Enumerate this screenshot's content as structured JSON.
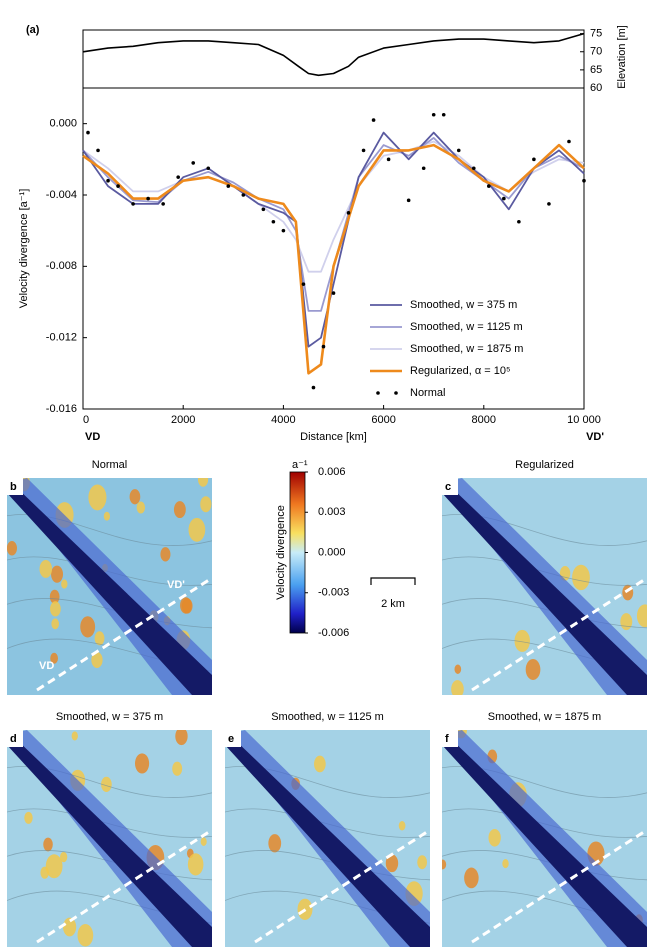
{
  "chart_data": [
    {
      "type": "line",
      "label": "(a)",
      "y_label": "Elevation [m]",
      "x": [
        0,
        500,
        1000,
        1500,
        2000,
        2500,
        3000,
        3500,
        4000,
        4300,
        4500,
        4700,
        5000,
        5300,
        5500,
        6000,
        6500,
        7000,
        7500,
        8000,
        8500,
        9000,
        9500,
        10000
      ],
      "series": [
        {
          "color": "#000000",
          "values": [
            70,
            71,
            71.5,
            72.5,
            73,
            73,
            72.5,
            72,
            69,
            66,
            64,
            63.5,
            64,
            66,
            68.5,
            71,
            72,
            73,
            73.5,
            73.5,
            73,
            72.5,
            73,
            75
          ]
        }
      ],
      "xlim": [
        0,
        10000
      ],
      "ylim": [
        60,
        76
      ],
      "yticks": [
        60,
        65,
        70,
        75
      ]
    },
    {
      "type": "line",
      "x_label": "Distance [km]",
      "y_label": "Velocity divergence [a⁻¹]",
      "annotations": [
        "VD",
        "VD'"
      ],
      "x": [
        0,
        500,
        1000,
        1500,
        2000,
        2500,
        3000,
        3500,
        4000,
        4250,
        4500,
        4750,
        5000,
        5500,
        6000,
        6500,
        7000,
        7500,
        8000,
        8500,
        9000,
        9500,
        10000
      ],
      "series": [
        {
          "name": "Smoothed, w = 375 m",
          "color": "#5a5aa0",
          "values": [
            -0.0015,
            -0.0035,
            -0.0045,
            -0.0045,
            -0.003,
            -0.0025,
            -0.0035,
            -0.0045,
            -0.005,
            -0.0055,
            -0.0125,
            -0.012,
            -0.009,
            -0.003,
            -0.0005,
            -0.002,
            -0.0005,
            -0.002,
            -0.003,
            -0.0048,
            -0.0025,
            -0.0015,
            -0.0028
          ]
        },
        {
          "name": "Smoothed, w = 1125 m",
          "color": "#9a9ad0",
          "values": [
            -0.0015,
            -0.003,
            -0.0043,
            -0.0044,
            -0.0032,
            -0.0027,
            -0.0033,
            -0.0042,
            -0.0048,
            -0.006,
            -0.0105,
            -0.0105,
            -0.008,
            -0.003,
            -0.0012,
            -0.0018,
            -0.0008,
            -0.0022,
            -0.0032,
            -0.0042,
            -0.0025,
            -0.0018,
            -0.0025
          ]
        },
        {
          "name": "Smoothed, w = 1875 m",
          "color": "#d0d0ec",
          "values": [
            -0.0015,
            -0.0025,
            -0.0038,
            -0.0038,
            -0.0032,
            -0.003,
            -0.0035,
            -0.0045,
            -0.0055,
            -0.0065,
            -0.0083,
            -0.0083,
            -0.0065,
            -0.0035,
            -0.0018,
            -0.0015,
            -0.001,
            -0.0018,
            -0.003,
            -0.0038,
            -0.0027,
            -0.002,
            -0.0022
          ]
        },
        {
          "name": "Regularized, α = 10⁵",
          "color": "#ee8a1c",
          "values": [
            -0.0018,
            -0.0028,
            -0.0042,
            -0.0042,
            -0.0032,
            -0.003,
            -0.0035,
            -0.0042,
            -0.0045,
            -0.0055,
            -0.014,
            -0.0135,
            -0.008,
            -0.0035,
            -0.0015,
            -0.0015,
            -0.0012,
            -0.002,
            -0.0032,
            -0.0038,
            -0.0025,
            -0.0012,
            -0.0025
          ]
        },
        {
          "name": "Normal",
          "color": "#000000",
          "style": "scatter",
          "x": [
            100,
            300,
            500,
            700,
            1000,
            1300,
            1600,
            1900,
            2200,
            2500,
            2900,
            3200,
            3600,
            3800,
            4000,
            4400,
            4600,
            4800,
            5000,
            5300,
            5600,
            5800,
            6100,
            6500,
            6800,
            7000,
            7200,
            7500,
            7800,
            8100,
            8400,
            8700,
            9000,
            9300,
            9700,
            10000
          ],
          "values": [
            -0.0005,
            -0.0015,
            -0.0032,
            -0.0035,
            -0.0045,
            -0.0042,
            -0.0045,
            -0.003,
            -0.0022,
            -0.0025,
            -0.0035,
            -0.004,
            -0.0048,
            -0.0055,
            -0.006,
            -0.009,
            -0.0148,
            -0.0125,
            -0.0095,
            -0.005,
            -0.0015,
            0.0002,
            -0.002,
            -0.0043,
            -0.0025,
            0.0005,
            0.0005,
            -0.0015,
            -0.0025,
            -0.0035,
            -0.0042,
            -0.0055,
            -0.002,
            -0.0045,
            -0.001,
            -0.0032
          ]
        }
      ],
      "xlim": [
        0,
        10000
      ],
      "ylim": [
        -0.016,
        0.002
      ],
      "xticks": [
        0,
        2000,
        4000,
        6000,
        8000,
        {
          "value": 10000,
          "label": "10 000"
        }
      ],
      "yticks": [
        -0.016,
        -0.012,
        -0.008,
        -0.004,
        {
          "value": 0,
          "label": "0.000"
        }
      ],
      "legend": "lower right"
    }
  ],
  "panels": [
    {
      "label": "b",
      "title": "Normal",
      "annotations": [
        "VD'",
        "VD"
      ]
    },
    {
      "label": "c",
      "title": "Regularized"
    },
    {
      "label": "d",
      "title": "Smoothed, w = 375 m"
    },
    {
      "label": "e",
      "title": "Smoothed, w = 1125 m"
    },
    {
      "label": "f",
      "title": "Smoothed, w = 1875 m"
    }
  ],
  "colorbar": {
    "label": "Velocity divergence",
    "unit": "a⁻¹",
    "ticks": [
      {
        "value": 0.006,
        "label": "0.006"
      },
      {
        "value": 0.003,
        "label": "0.003"
      },
      {
        "value": 0,
        "label": "0.000"
      },
      {
        "value": -0.003,
        "label": "-0.003"
      },
      {
        "value": -0.006,
        "label": "-0.006"
      }
    ]
  },
  "scale_bar": "2 km"
}
